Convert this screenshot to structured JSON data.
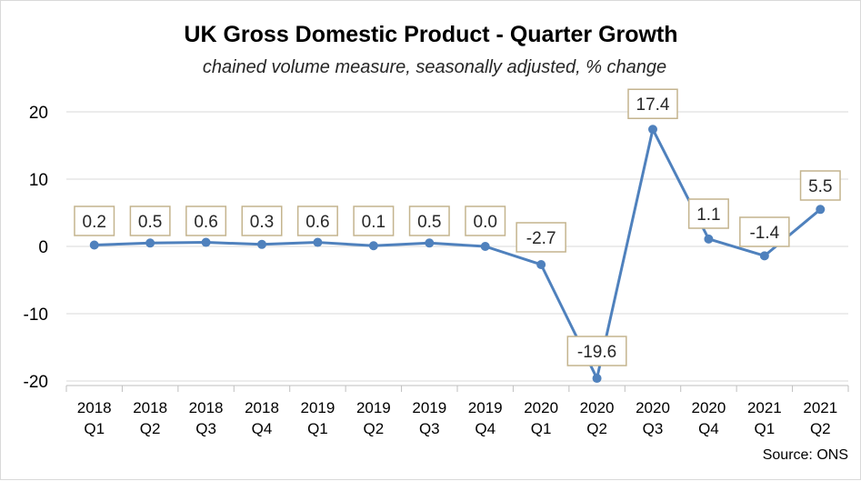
{
  "chart_data": {
    "type": "line",
    "title": "UK Gross Domestic Product - Quarter Growth",
    "subtitle": "chained volume measure, seasonally adjusted, % change",
    "source": "Source: ONS",
    "categories": [
      [
        "2018",
        "Q1"
      ],
      [
        "2018",
        "Q2"
      ],
      [
        "2018",
        "Q3"
      ],
      [
        "2018",
        "Q4"
      ],
      [
        "2019",
        "Q1"
      ],
      [
        "2019",
        "Q2"
      ],
      [
        "2019",
        "Q3"
      ],
      [
        "2019",
        "Q4"
      ],
      [
        "2020",
        "Q1"
      ],
      [
        "2020",
        "Q2"
      ],
      [
        "2020",
        "Q3"
      ],
      [
        "2020",
        "Q4"
      ],
      [
        "2021",
        "Q1"
      ],
      [
        "2021",
        "Q2"
      ]
    ],
    "series": [
      {
        "values": [
          0.2,
          0.5,
          0.6,
          0.3,
          0.6,
          0.1,
          0.5,
          0.0,
          -2.7,
          -19.6,
          17.4,
          1.1,
          -1.4,
          5.5
        ],
        "labels": [
          "0.2",
          "0.5",
          "0.6",
          "0.3",
          "0.6",
          "0.1",
          "0.5",
          "0.0",
          "-2.7",
          "-19.6",
          "17.4",
          "1.1",
          "-1.4",
          "5.5"
        ]
      }
    ],
    "yticks": [
      20,
      10,
      0,
      -10,
      -20
    ],
    "ylim": [
      -20,
      20
    ],
    "grid": true,
    "legend": "none",
    "colors": {
      "line": "#4f81bd",
      "grid": "#d9d9d9",
      "label_border": "#c4b48e",
      "axis": "#bfbfbf"
    }
  }
}
